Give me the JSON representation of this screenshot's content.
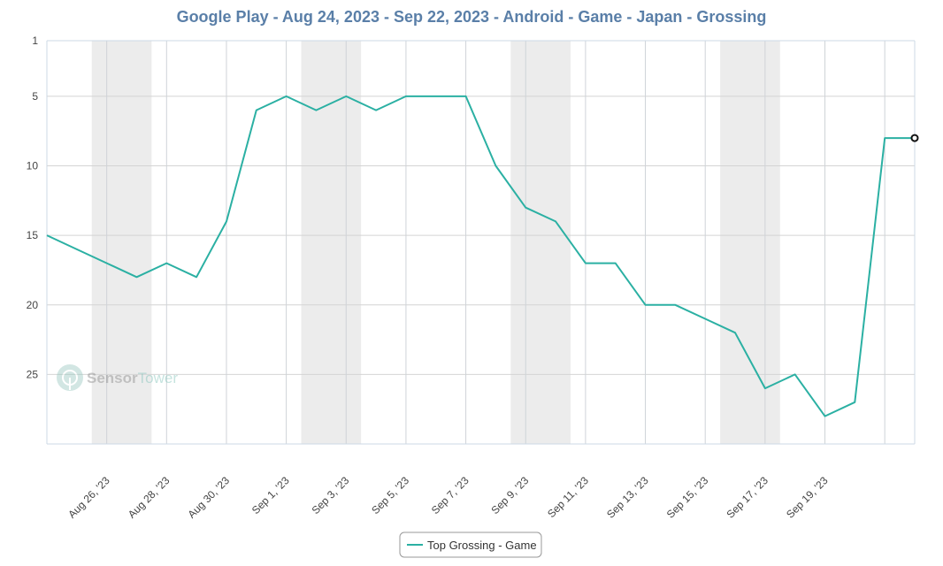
{
  "chart_data": {
    "type": "line",
    "title": "Google Play - Aug 24, 2023 - Sep 22, 2023 - Android - Game - Japan - Grossing",
    "xlabel": "",
    "ylabel": "",
    "y_reversed": true,
    "ylim": [
      1,
      30
    ],
    "y_ticks": [
      "1",
      "5",
      "10",
      "15",
      "20",
      "25"
    ],
    "y_tick_values": [
      1,
      5,
      10,
      15,
      20,
      25
    ],
    "x": [
      "2023-08-24",
      "2023-08-25",
      "2023-08-26",
      "2023-08-27",
      "2023-08-28",
      "2023-08-29",
      "2023-08-30",
      "2023-08-31",
      "2023-09-01",
      "2023-09-02",
      "2023-09-03",
      "2023-09-04",
      "2023-09-05",
      "2023-09-06",
      "2023-09-07",
      "2023-09-08",
      "2023-09-09",
      "2023-09-10",
      "2023-09-11",
      "2023-09-12",
      "2023-09-13",
      "2023-09-14",
      "2023-09-15",
      "2023-09-16",
      "2023-09-17",
      "2023-09-18",
      "2023-09-19",
      "2023-09-20",
      "2023-09-21",
      "2023-09-22"
    ],
    "x_tick_labels": [
      "Aug 26, '23",
      "Aug 28, '23",
      "Aug 30, '23",
      "Sep 1, '23",
      "Sep 3, '23",
      "Sep 5, '23",
      "Sep 7, '23",
      "Sep 9, '23",
      "Sep 11, '23",
      "Sep 13, '23",
      "Sep 15, '23",
      "Sep 17, '23",
      "Sep 19, '23"
    ],
    "weekend_bands": [
      [
        "2023-08-26",
        "2023-08-27"
      ],
      [
        "2023-09-02",
        "2023-09-03"
      ],
      [
        "2023-09-09",
        "2023-09-10"
      ],
      [
        "2023-09-16",
        "2023-09-17"
      ]
    ],
    "grid": true,
    "legend_position": "bottom-center",
    "series": [
      {
        "name": "Top Grossing - Game",
        "color": "#2bb0a3",
        "values": [
          15,
          16,
          17,
          18,
          17,
          18,
          14,
          6,
          5,
          6,
          5,
          6,
          5,
          5,
          5,
          10,
          13,
          14,
          17,
          17,
          20,
          20,
          21,
          22,
          26,
          25,
          28,
          27,
          8,
          8
        ]
      }
    ]
  },
  "watermark": {
    "part1": "Sensor",
    "part2": "Tower",
    "icon": "sensor-tower-logo-icon"
  }
}
